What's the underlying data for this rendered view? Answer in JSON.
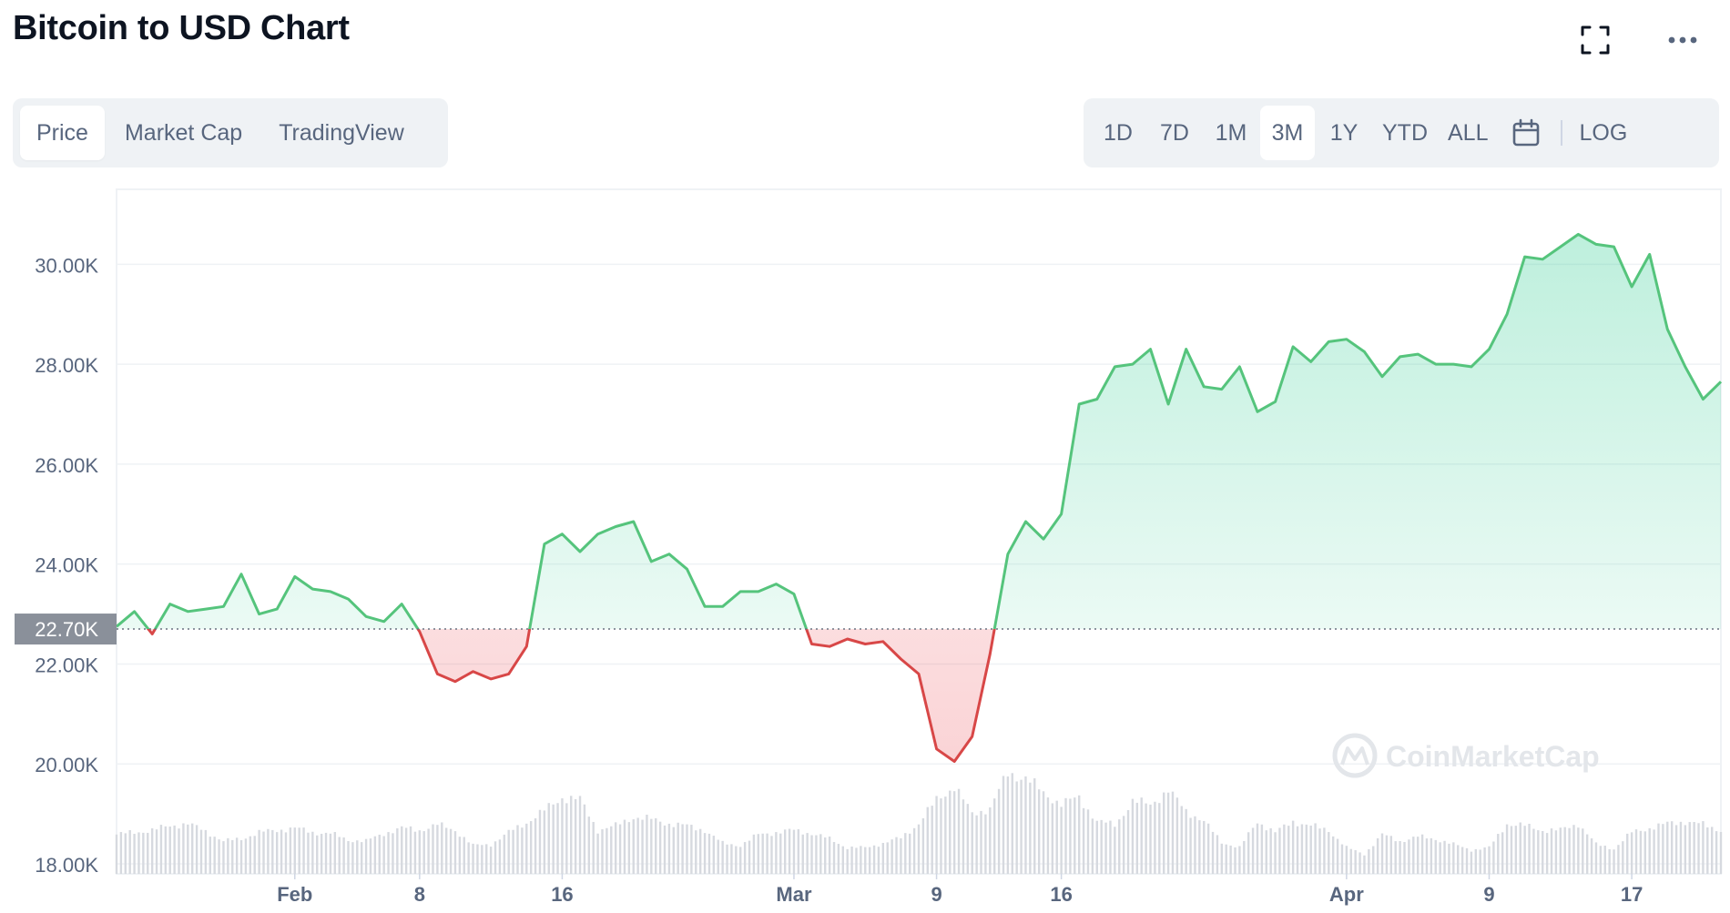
{
  "header": {
    "title": "Bitcoin to USD Chart",
    "fullscreen_icon": "expand-icon",
    "more_icon": "ellipsis-icon"
  },
  "view_tabs": [
    {
      "label": "Price",
      "active": true
    },
    {
      "label": "Market Cap",
      "active": false
    },
    {
      "label": "TradingView",
      "active": false
    }
  ],
  "range_tabs": [
    {
      "label": "1D",
      "active": false
    },
    {
      "label": "7D",
      "active": false
    },
    {
      "label": "1M",
      "active": false
    },
    {
      "label": "3M",
      "active": true
    },
    {
      "label": "1Y",
      "active": false
    },
    {
      "label": "YTD",
      "active": false
    },
    {
      "label": "ALL",
      "active": false
    }
  ],
  "calendar_icon": "calendar-icon",
  "log_label": "LOG",
  "colors": {
    "up": "#16c784",
    "up_line": "#55c47c",
    "down": "#d84747",
    "grid": "#eff2f5",
    "axis_text": "#58667e",
    "volume": "#d6d9df",
    "reference_label_bg": "#8a909a"
  },
  "watermark": {
    "text": "CoinMarketCap"
  },
  "chart_data": {
    "type": "line",
    "title": "",
    "xlabel": "",
    "ylabel": "",
    "ylim": [
      17800,
      31500
    ],
    "yticks": [
      18000,
      20000,
      22000,
      24000,
      26000,
      28000,
      30000
    ],
    "ytick_labels": [
      "18.00K",
      "20.00K",
      "22.00K",
      "24.00K",
      "26.00K",
      "28.00K",
      "30.00K"
    ],
    "xlim": [
      "2023-01-22",
      "2023-04-22"
    ],
    "xticks": [
      "2023-02-01",
      "2023-02-08",
      "2023-02-16",
      "2023-03-01",
      "2023-03-09",
      "2023-03-16",
      "2023-04-01",
      "2023-04-09",
      "2023-04-17"
    ],
    "xtick_labels": [
      "Feb",
      "8",
      "16",
      "Mar",
      "9",
      "16",
      "Apr",
      "9",
      "17"
    ],
    "reference": {
      "value": 22700,
      "label": "22.70K"
    },
    "grid": true,
    "series": [
      {
        "x": [
          "2023-01-22",
          "2023-01-23",
          "2023-01-24",
          "2023-01-25",
          "2023-01-26",
          "2023-01-27",
          "2023-01-28",
          "2023-01-29",
          "2023-01-30",
          "2023-01-31",
          "2023-02-01",
          "2023-02-02",
          "2023-02-03",
          "2023-02-04",
          "2023-02-05",
          "2023-02-06",
          "2023-02-07",
          "2023-02-08",
          "2023-02-09",
          "2023-02-10",
          "2023-02-11",
          "2023-02-12",
          "2023-02-13",
          "2023-02-14",
          "2023-02-15",
          "2023-02-16",
          "2023-02-17",
          "2023-02-18",
          "2023-02-19",
          "2023-02-20",
          "2023-02-21",
          "2023-02-22",
          "2023-02-23",
          "2023-02-24",
          "2023-02-25",
          "2023-02-26",
          "2023-02-27",
          "2023-02-28",
          "2023-03-01",
          "2023-03-02",
          "2023-03-03",
          "2023-03-04",
          "2023-03-05",
          "2023-03-06",
          "2023-03-07",
          "2023-03-08",
          "2023-03-09",
          "2023-03-10",
          "2023-03-11",
          "2023-03-12",
          "2023-03-13",
          "2023-03-14",
          "2023-03-15",
          "2023-03-16",
          "2023-03-17",
          "2023-03-18",
          "2023-03-19",
          "2023-03-20",
          "2023-03-21",
          "2023-03-22",
          "2023-03-23",
          "2023-03-24",
          "2023-03-25",
          "2023-03-26",
          "2023-03-27",
          "2023-03-28",
          "2023-03-29",
          "2023-03-30",
          "2023-03-31",
          "2023-04-01",
          "2023-04-02",
          "2023-04-03",
          "2023-04-04",
          "2023-04-05",
          "2023-04-06",
          "2023-04-07",
          "2023-04-08",
          "2023-04-09",
          "2023-04-10",
          "2023-04-11",
          "2023-04-12",
          "2023-04-13",
          "2023-04-14",
          "2023-04-15",
          "2023-04-16",
          "2023-04-17",
          "2023-04-18",
          "2023-04-19",
          "2023-04-20",
          "2023-04-21",
          "2023-04-22"
        ],
        "values": [
          22750,
          23050,
          22600,
          23200,
          23050,
          23100,
          23150,
          23800,
          23000,
          23100,
          23750,
          23500,
          23450,
          23300,
          22950,
          22850,
          23200,
          22650,
          21800,
          21650,
          21850,
          21700,
          21800,
          22350,
          24400,
          24600,
          24250,
          24600,
          24750,
          24850,
          24050,
          24200,
          23900,
          23150,
          23150,
          23450,
          23450,
          23600,
          23400,
          22400,
          22350,
          22500,
          22400,
          22450,
          22100,
          21800,
          20300,
          20050,
          20550,
          22200,
          24200,
          24850,
          24500,
          25000,
          27200,
          27300,
          27950,
          28000,
          28300,
          27200,
          28300,
          27550,
          27500,
          27950,
          27050,
          27250,
          28350,
          28050,
          28450,
          28500,
          28250,
          27750,
          28150,
          28200,
          28000,
          28000,
          27950,
          28300,
          29000,
          30150,
          30100,
          30350,
          30600,
          30400,
          30350,
          29550,
          30200,
          28700,
          27950,
          27300,
          27650
        ],
        "volumes": [
          0.36,
          0.38,
          0.4,
          0.44,
          0.46,
          0.39,
          0.3,
          0.32,
          0.38,
          0.4,
          0.42,
          0.38,
          0.37,
          0.31,
          0.3,
          0.37,
          0.42,
          0.4,
          0.45,
          0.4,
          0.26,
          0.27,
          0.38,
          0.47,
          0.58,
          0.7,
          0.68,
          0.4,
          0.44,
          0.52,
          0.5,
          0.46,
          0.44,
          0.4,
          0.28,
          0.26,
          0.36,
          0.38,
          0.4,
          0.37,
          0.32,
          0.24,
          0.24,
          0.28,
          0.33,
          0.46,
          0.68,
          0.8,
          0.55,
          0.6,
          0.92,
          0.88,
          0.74,
          0.64,
          0.7,
          0.48,
          0.45,
          0.66,
          0.64,
          0.76,
          0.58,
          0.48,
          0.29,
          0.24,
          0.48,
          0.38,
          0.48,
          0.44,
          0.4,
          0.24,
          0.18,
          0.36,
          0.3,
          0.34,
          0.32,
          0.27,
          0.22,
          0.24,
          0.46,
          0.44,
          0.4,
          0.4,
          0.46,
          0.27,
          0.23,
          0.38,
          0.42,
          0.46,
          0.48,
          0.45,
          0.4
        ]
      }
    ]
  }
}
